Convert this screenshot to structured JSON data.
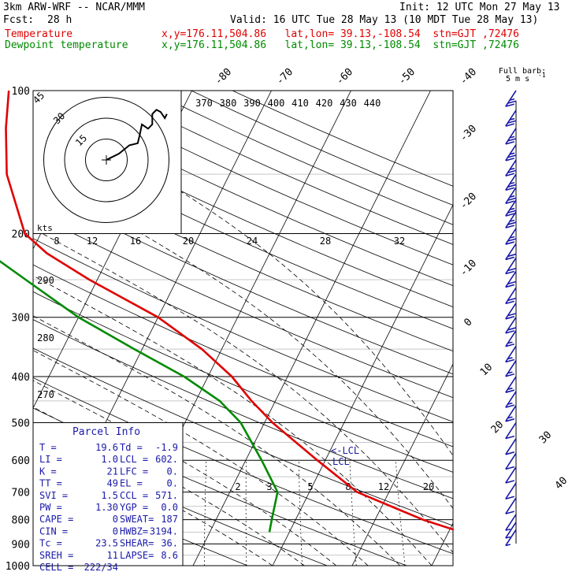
{
  "header": {
    "model": "3km ARW-WRF -- NCAR/MMM",
    "init": "Init: 12 UTC Mon 27 May 13",
    "fcst_label": "Fcst:",
    "fcst_value": "28 h",
    "valid": "Valid: 16 UTC Tue 28 May 13 (10 MDT Tue 28 May 13)",
    "temp_label": "Temperature",
    "dew_label": "Dewpoint temperature",
    "loc": "x,y=176.11,504.86   lat,lon= 39.13,-108.54  stn=GJT ,72476"
  },
  "barb_key": {
    "title": "Full barb:",
    "value": "5 m s",
    "exp": "-1"
  },
  "hodograph": {
    "kts_label": "kts",
    "ring_labels": [
      "15",
      "30",
      "45"
    ]
  },
  "colors": {
    "temperature": "#e00000",
    "dewpoint": "#008a00",
    "wind": "#1a1aa8",
    "parcel_text": "#1a1aa8"
  },
  "parcel_info": {
    "title": "Parcel Info",
    "rows": [
      [
        "T    =",
        "19.6",
        "Td  =",
        "-1.9"
      ],
      [
        "LI   =",
        "1.0",
        "LCL =",
        "602."
      ],
      [
        "K    =",
        "21",
        "LFC =",
        "0."
      ],
      [
        "TT   =",
        "49",
        "EL  =",
        "0."
      ],
      [
        "SVI  =",
        "1.5",
        "CCL =",
        "571."
      ],
      [
        "PW   =",
        "1.30",
        "YGP =",
        "0.0"
      ],
      [
        "CAPE =",
        "0",
        "SWEAT=",
        "187"
      ],
      [
        "CIN  =",
        "0",
        "HWBZ=",
        "3194."
      ],
      [
        "Tc   =",
        "23.5",
        "SHEAR=",
        "36."
      ],
      [
        "SREH =",
        "11",
        "LAPSE=",
        "8.6"
      ],
      [
        "CELL =",
        "222/34",
        "",
        ""
      ]
    ]
  },
  "parcel_markers": {
    "lcl": "<-LCL",
    "lcl2": "LCL"
  },
  "chart_data": {
    "type": "line",
    "title": "",
    "pressure_labels": [
      "100",
      "200",
      "300",
      "400",
      "500",
      "600",
      "700",
      "800",
      "900",
      "1000"
    ],
    "isotherm_labels": [
      "-80",
      "-70",
      "-60",
      "-50",
      "-40",
      "-30",
      "-20",
      "-10",
      "0",
      "10",
      "20",
      "30",
      "40"
    ],
    "theta_labels": [
      "370",
      "380",
      "390",
      "400",
      "410",
      "420",
      "430",
      "440"
    ],
    "theta_low_labels": [
      "290",
      "280",
      "270"
    ],
    "mixing_ratio_labels_top": [
      "8",
      "12",
      "16",
      "20",
      "24",
      "28",
      "32"
    ],
    "mixing_ratio_labels_bottom": [
      "2",
      "3",
      "5",
      "8",
      "12",
      "20"
    ],
    "series": [
      {
        "name": "Temperature",
        "points": [
          [
            840,
            20.5
          ],
          [
            800,
            16
          ],
          [
            700,
            6
          ],
          [
            600,
            -1
          ],
          [
            500,
            -9
          ],
          [
            450,
            -13
          ],
          [
            400,
            -17
          ],
          [
            350,
            -22.5
          ],
          [
            300,
            -30
          ],
          [
            250,
            -41
          ],
          [
            220,
            -48
          ],
          [
            200,
            -52
          ],
          [
            150,
            -58
          ],
          [
            120,
            -61
          ],
          [
            100,
            -63
          ]
        ]
      },
      {
        "name": "Dewpoint temperature",
        "points": [
          [
            850,
            -2.5
          ],
          [
            800,
            -3
          ],
          [
            700,
            -4
          ],
          [
            600,
            -8
          ],
          [
            500,
            -13
          ],
          [
            450,
            -17
          ],
          [
            400,
            -23
          ],
          [
            350,
            -31
          ],
          [
            300,
            -40
          ],
          [
            250,
            -49
          ],
          [
            200,
            -60
          ],
          [
            170,
            -70
          ],
          [
            150,
            -75
          ],
          [
            130,
            -81
          ],
          [
            100,
            -86
          ]
        ]
      }
    ],
    "wind_barbs": [
      {
        "p": 100,
        "kt": 25
      },
      {
        "p": 110,
        "kt": 25
      },
      {
        "p": 120,
        "kt": 25
      },
      {
        "p": 130,
        "kt": 25
      },
      {
        "p": 140,
        "kt": 25
      },
      {
        "p": 150,
        "kt": 25
      },
      {
        "p": 160,
        "kt": 25
      },
      {
        "p": 170,
        "kt": 25
      },
      {
        "p": 180,
        "kt": 25
      },
      {
        "p": 195,
        "kt": 25
      },
      {
        "p": 210,
        "kt": 20
      },
      {
        "p": 225,
        "kt": 20
      },
      {
        "p": 240,
        "kt": 20
      },
      {
        "p": 260,
        "kt": 20
      },
      {
        "p": 280,
        "kt": 20
      },
      {
        "p": 300,
        "kt": 20
      },
      {
        "p": 320,
        "kt": 15
      },
      {
        "p": 345,
        "kt": 15
      },
      {
        "p": 370,
        "kt": 15
      },
      {
        "p": 400,
        "kt": 15
      },
      {
        "p": 430,
        "kt": 15
      },
      {
        "p": 460,
        "kt": 15
      },
      {
        "p": 500,
        "kt": 10
      },
      {
        "p": 540,
        "kt": 10
      },
      {
        "p": 580,
        "kt": 10
      },
      {
        "p": 620,
        "kt": 10
      },
      {
        "p": 670,
        "kt": 10
      },
      {
        "p": 720,
        "kt": 10
      },
      {
        "p": 780,
        "kt": 5
      },
      {
        "p": 810,
        "kt": 5
      },
      {
        "p": 840,
        "kt": 5
      }
    ],
    "hodograph": [
      [
        0,
        0
      ],
      [
        2,
        -1
      ],
      [
        6,
        -3
      ],
      [
        11,
        -7
      ],
      [
        15,
        -8
      ],
      [
        16,
        -12
      ],
      [
        17,
        -17
      ],
      [
        20,
        -15
      ],
      [
        22,
        -17
      ],
      [
        22,
        -22
      ],
      [
        24,
        -24
      ],
      [
        26,
        -23
      ],
      [
        28,
        -20
      ],
      [
        29,
        -22
      ]
    ],
    "parcel_lcl": 602
  }
}
